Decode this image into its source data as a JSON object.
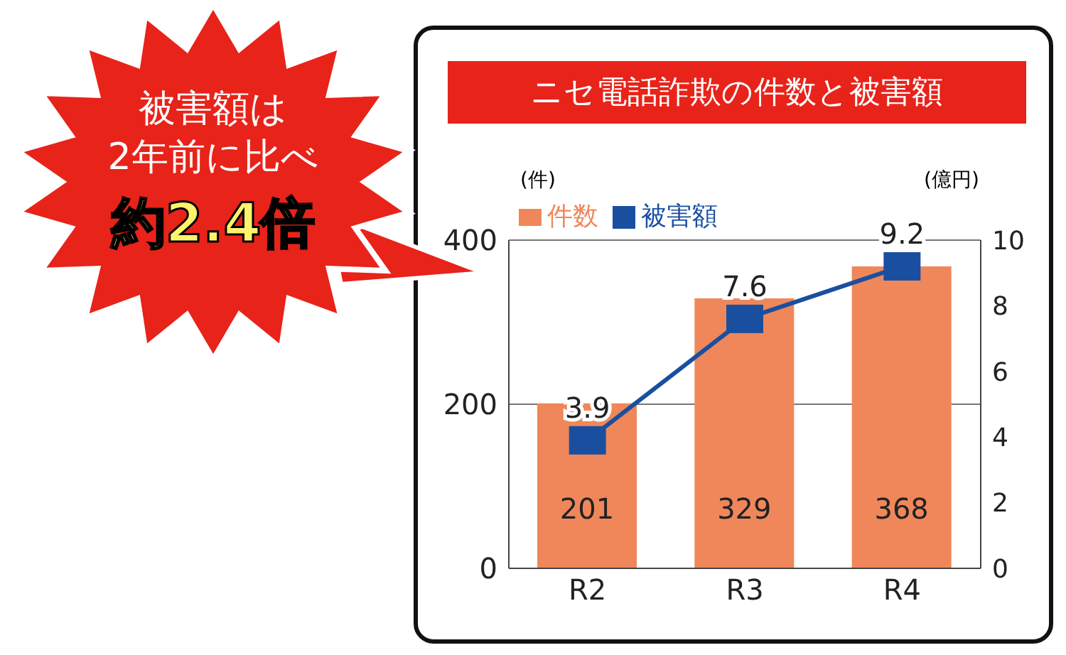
{
  "chart_data": {
    "type": "bar",
    "title": "ニセ電話詐欺の件数と被害額",
    "ylabel": "(件)",
    "y2label": "(億円)",
    "annotations": [
      "被害額は",
      "2年前に比べ",
      "約2.4倍"
    ],
    "categories": [
      "R2",
      "R3",
      "R4"
    ],
    "series": [
      {
        "name": "件数",
        "color": "#f0875a",
        "values": [
          201,
          329,
          368
        ]
      },
      {
        "name": "被害額",
        "type": "line",
        "axis": "y2",
        "color": "#1a4fa0",
        "values": [
          3.9,
          7.6,
          9.2
        ]
      }
    ],
    "ylim": [
      0,
      400
    ],
    "yticks": [
      0,
      200,
      400
    ],
    "y2lim": [
      0,
      10
    ],
    "y2ticks": [
      0,
      2,
      4,
      6,
      8,
      10
    ],
    "grid": "y",
    "legend": "top left",
    "marker": "square",
    "line_style": "solid",
    "data_labels": true
  }
}
